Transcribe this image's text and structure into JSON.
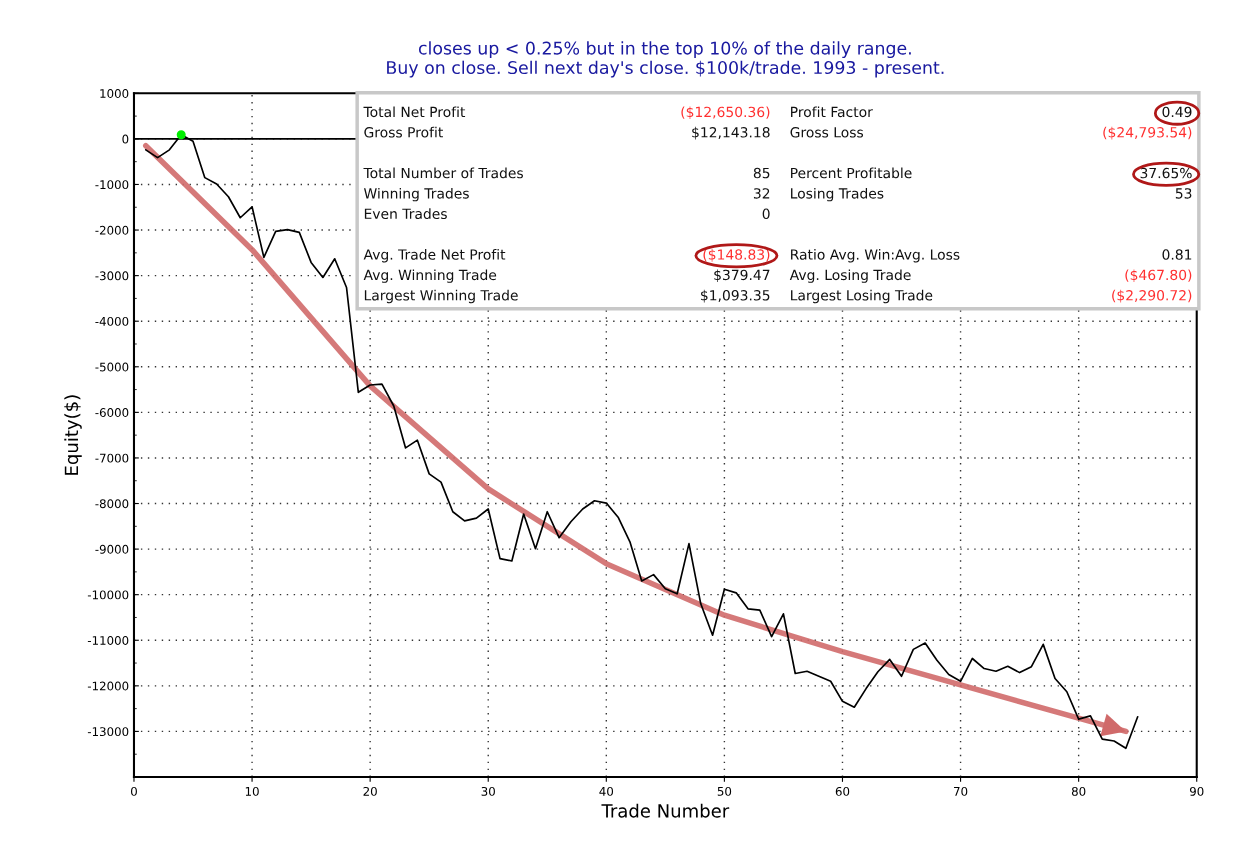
{
  "chart_data": {
    "type": "line",
    "title": "closes up < 0.25% but in the top 10% of the daily range.\nBuy on close. Sell next day's close. $100k/trade. 1993 - present.",
    "xlabel": "Trade Number",
    "ylabel": "Equity($)",
    "x": [
      1,
      2,
      3,
      4,
      5,
      6,
      7,
      8,
      9,
      10,
      11,
      12,
      13,
      14,
      15,
      16,
      17,
      18,
      19,
      20,
      21,
      22,
      23,
      24,
      25,
      26,
      27,
      28,
      29,
      30,
      31,
      32,
      33,
      34,
      35,
      36,
      37,
      38,
      39,
      40,
      41,
      42,
      43,
      44,
      45,
      46,
      47,
      48,
      49,
      50,
      51,
      52,
      53,
      54,
      55,
      56,
      57,
      58,
      59,
      60,
      61,
      62,
      63,
      64,
      65,
      66,
      67,
      68,
      69,
      70,
      71,
      72,
      73,
      74,
      75,
      76,
      77,
      78,
      79,
      80,
      81,
      82,
      83,
      84,
      85
    ],
    "series": [
      {
        "color": "#000000",
        "values": [
          -240,
          -410,
          -240,
          90,
          -50,
          -850,
          -990,
          -1270,
          -1730,
          -1490,
          -2600,
          -2030,
          -1990,
          -2050,
          -2710,
          -3040,
          -2630,
          -3260,
          -5560,
          -5400,
          -5380,
          -5860,
          -6780,
          -6610,
          -7350,
          -7530,
          -8180,
          -8380,
          -8320,
          -8120,
          -9210,
          -9260,
          -8230,
          -8990,
          -8180,
          -8750,
          -8400,
          -8120,
          -7940,
          -7990,
          -8300,
          -8840,
          -9700,
          -9560,
          -9870,
          -9980,
          -8880,
          -10200,
          -10890,
          -9880,
          -9960,
          -10310,
          -10340,
          -10920,
          -10420,
          -11730,
          -11680,
          -11790,
          -11900,
          -12340,
          -12470,
          -12060,
          -11690,
          -11420,
          -11790,
          -11200,
          -11060,
          -11440,
          -11750,
          -11900,
          -11400,
          -11620,
          -11680,
          -11570,
          -11710,
          -11580,
          -11090,
          -11840,
          -12130,
          -12730,
          -12660,
          -13170,
          -13210,
          -13370,
          -12680
        ]
      },
      {
        "type": "scatter",
        "color": "#00ee00",
        "x": [
          4
        ],
        "values": [
          90
        ]
      },
      {
        "type": "line",
        "color": "#d06a6a",
        "x": [
          1,
          10,
          20,
          30,
          40,
          50,
          60,
          70,
          84
        ],
        "values": [
          -150,
          -2430,
          -5420,
          -7680,
          -9320,
          -10450,
          -11250,
          -11980,
          -13000
        ]
      }
    ],
    "xlim": [
      0,
      90
    ],
    "xticks": [
      0,
      10,
      20,
      30,
      40,
      50,
      60,
      70,
      80,
      90
    ],
    "ylim": [
      -14000,
      1000
    ],
    "yticks": [
      -13000,
      -12000,
      -11000,
      -10000,
      -9000,
      -8000,
      -7000,
      -6000,
      -5000,
      -4000,
      -3000,
      -2000,
      -1000,
      0,
      1000
    ],
    "ref_lines": [
      {
        "axis": "y",
        "value": 0,
        "color": "#000000",
        "line_style": "solid"
      }
    ],
    "grid": true,
    "legend": false,
    "marker": "none",
    "line_style": "solid",
    "annotations": [
      "Total Net Profit",
      "($12,650.36)",
      "Profit Factor",
      "0.49",
      "Gross Profit",
      "$12,143.18",
      "Gross Loss",
      "($24,793.54)",
      "Total Number of Trades",
      "85",
      "Percent Profitable",
      "37.65%",
      "Winning Trades",
      "32",
      "Losing Trades",
      "53",
      "Even Trades",
      "0",
      "Avg. Trade Net Profit",
      "($148.83)",
      "Ratio Avg. Win:Avg. Loss",
      "0.81",
      "Avg. Winning Trade",
      "$379.47",
      "Avg. Losing Trade",
      "($467.80)",
      "Largest Winning Trade",
      "$1,093.35",
      "Largest Losing Trade",
      "($2,290.72)"
    ]
  }
}
